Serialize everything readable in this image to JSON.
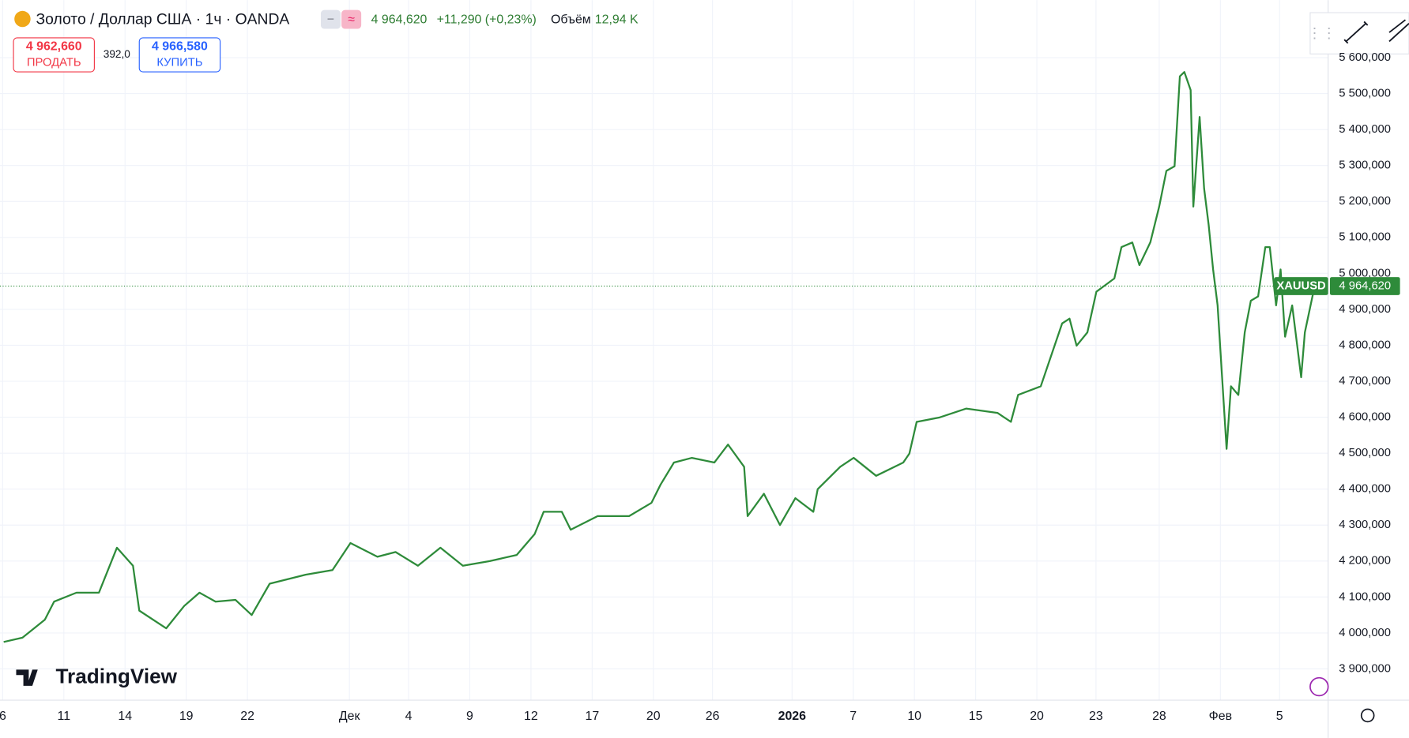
{
  "chart_data": {
    "type": "line",
    "title": "Золото / Доллар США · 1ч · OANDA",
    "current_price": {
      "value": 4964.62,
      "label": "4 964,620"
    },
    "change": "+11,290 (+0,23%)",
    "volume_label": "Объём",
    "volume": "12,94 K",
    "sell": {
      "price": "4 962,660",
      "label": "ПРОДАТЬ"
    },
    "spread": "392,0",
    "buy": {
      "price": "4 966,580",
      "label": "КУПИТЬ"
    },
    "brand": "TradingView",
    "xlim": [
      -3.13,
      61.98
    ],
    "xticks": [
      {
        "value": -3.0,
        "label": "6"
      },
      {
        "value": 0,
        "label": "11"
      },
      {
        "value": 3.0,
        "label": "14"
      },
      {
        "value": 6.0,
        "label": "19"
      },
      {
        "value": 9.0,
        "label": "22"
      },
      {
        "value": 14.0,
        "label": "Дек"
      },
      {
        "value": 16.9,
        "label": "4"
      },
      {
        "value": 19.9,
        "label": "9"
      },
      {
        "value": 22.9,
        "label": "12"
      },
      {
        "value": 25.9,
        "label": "17"
      },
      {
        "value": 28.9,
        "label": "20"
      },
      {
        "value": 31.8,
        "label": "26"
      },
      {
        "value": 35.7,
        "label": "2026"
      },
      {
        "value": 38.7,
        "label": "7"
      },
      {
        "value": 41.7,
        "label": "10"
      },
      {
        "value": 44.7,
        "label": "15"
      },
      {
        "value": 47.7,
        "label": "20"
      },
      {
        "value": 50.6,
        "label": "23"
      },
      {
        "value": 53.7,
        "label": "28"
      },
      {
        "value": 56.7,
        "label": "Фев"
      },
      {
        "value": 59.6,
        "label": "5"
      }
    ],
    "ylim": [
      3813,
      5760
    ],
    "yticks": [
      {
        "value": 3900,
        "label": "3 900,000"
      },
      {
        "value": 4000,
        "label": "4 000,000"
      },
      {
        "value": 4100,
        "label": "4 100,000"
      },
      {
        "value": 4200,
        "label": "4 200,000"
      },
      {
        "value": 4300,
        "label": "4 300,000"
      },
      {
        "value": 4400,
        "label": "4 400,000"
      },
      {
        "value": 4500,
        "label": "4 500,000"
      },
      {
        "value": 4600,
        "label": "4 600,000"
      },
      {
        "value": 4700,
        "label": "4 700,000"
      },
      {
        "value": 4800,
        "label": "4 800,000"
      },
      {
        "value": 4900,
        "label": "4 900,000"
      },
      {
        "value": 5000,
        "label": "5 000,000"
      },
      {
        "value": 5100,
        "label": "5 100,000"
      },
      {
        "value": 5200,
        "label": "5 200,000"
      },
      {
        "value": 5300,
        "label": "5 300,000"
      },
      {
        "value": 5400,
        "label": "5 400,000"
      },
      {
        "value": 5500,
        "label": "5 500,000"
      },
      {
        "value": 5600,
        "label": "5 600,000"
      }
    ],
    "grid": true,
    "series": [
      {
        "name": "XAUUSD",
        "color": "#2e8b3a",
        "x": [
          -2.95,
          -2.03,
          -0.93,
          -0.48,
          0.62,
          1.72,
          2.6,
          3.39,
          3.7,
          5.02,
          5.9,
          6.65,
          7.44,
          8.41,
          9.21,
          10.09,
          11.85,
          13.17,
          14.05,
          15.37,
          16.26,
          17.36,
          18.46,
          19.56,
          20.88,
          22.2,
          23.08,
          23.52,
          24.41,
          24.85,
          26.17,
          27.71,
          28.81,
          29.25,
          29.91,
          30.79,
          31.89,
          32.56,
          33.35,
          33.52,
          34.32,
          35.11,
          35.86,
          36.74,
          36.96,
          38.06,
          38.72,
          39.82,
          41.15,
          41.45,
          41.81,
          42.91,
          44.23,
          45.77,
          46.43,
          46.78,
          47.89,
          48.19,
          48.94,
          49.3,
          49.65,
          50.18,
          50.62,
          51.5,
          51.85,
          52.38,
          52.73,
          53.26,
          53.7,
          54.05,
          54.45,
          54.71,
          54.93,
          55.24,
          55.37,
          55.68,
          55.9,
          56.12,
          56.34,
          56.56,
          56.78,
          57.0,
          57.22,
          57.58,
          57.89,
          58.19,
          58.55,
          58.9,
          59.12,
          59.43,
          59.65,
          59.87,
          60.22,
          60.66,
          60.84,
          61.32
        ],
        "values": [
          3975,
          3987,
          4037,
          4087,
          4112,
          4112,
          4237,
          4187,
          4062,
          4013,
          4075,
          4112,
          4087,
          4092,
          4050,
          4137,
          4162,
          4175,
          4250,
          4212,
          4225,
          4187,
          4237,
          4187,
          4200,
          4217,
          4275,
          4337,
          4337,
          4287,
          4325,
          4325,
          4362,
          4412,
          4474,
          4487,
          4474,
          4524,
          4462,
          4325,
          4387,
          4300,
          4375,
          4337,
          4400,
          4462,
          4487,
          4437,
          4474,
          4499,
          4587,
          4599,
          4624,
          4612,
          4587,
          4662,
          4686,
          4736,
          4861,
          4874,
          4799,
          4836,
          4949,
          4986,
          5073,
          5086,
          5023,
          5086,
          5186,
          5285,
          5298,
          5548,
          5560,
          5510,
          5186,
          5435,
          5236,
          5136,
          5011,
          4911,
          4711,
          4512,
          4686,
          4662,
          4836,
          4924,
          4936,
          5073,
          5073,
          4911,
          5011,
          4824,
          4911,
          4711,
          4836,
          4964.62
        ]
      }
    ]
  }
}
